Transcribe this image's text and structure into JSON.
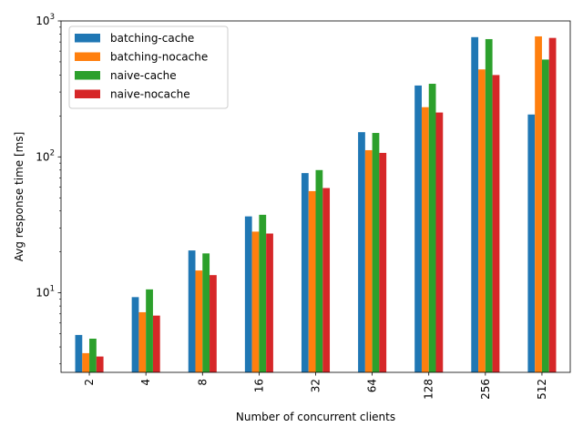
{
  "chart_data": {
    "type": "bar",
    "title": "",
    "xlabel": "Number of concurrent clients",
    "ylabel": "Avg response time [ms]",
    "yscale": "log",
    "ylim": [
      2.6,
      1000
    ],
    "grid": false,
    "legend_position": "top-left",
    "categories": [
      "2",
      "4",
      "8",
      "16",
      "32",
      "64",
      "128",
      "256",
      "512"
    ],
    "y_ticks": [
      {
        "value": 10,
        "base": "10",
        "exp": "1"
      },
      {
        "value": 100,
        "base": "10",
        "exp": "2"
      },
      {
        "value": 1000,
        "base": "10",
        "exp": "3"
      }
    ],
    "series": [
      {
        "name": "batching-cache",
        "color": "#1f77b4",
        "values": [
          4.9,
          9.3,
          20.5,
          36.5,
          76,
          152,
          335,
          760,
          205
        ]
      },
      {
        "name": "batching-nocache",
        "color": "#ff7f0e",
        "values": [
          3.6,
          7.2,
          14.6,
          28.2,
          56,
          112,
          232,
          440,
          770
        ]
      },
      {
        "name": "naive-cache",
        "color": "#2ca02c",
        "values": [
          4.6,
          10.6,
          19.5,
          37.5,
          80,
          150,
          345,
          735,
          520
        ]
      },
      {
        "name": "naive-nocache",
        "color": "#d62728",
        "values": [
          3.4,
          6.8,
          13.5,
          27.3,
          59,
          107,
          212,
          400,
          750
        ]
      }
    ]
  }
}
